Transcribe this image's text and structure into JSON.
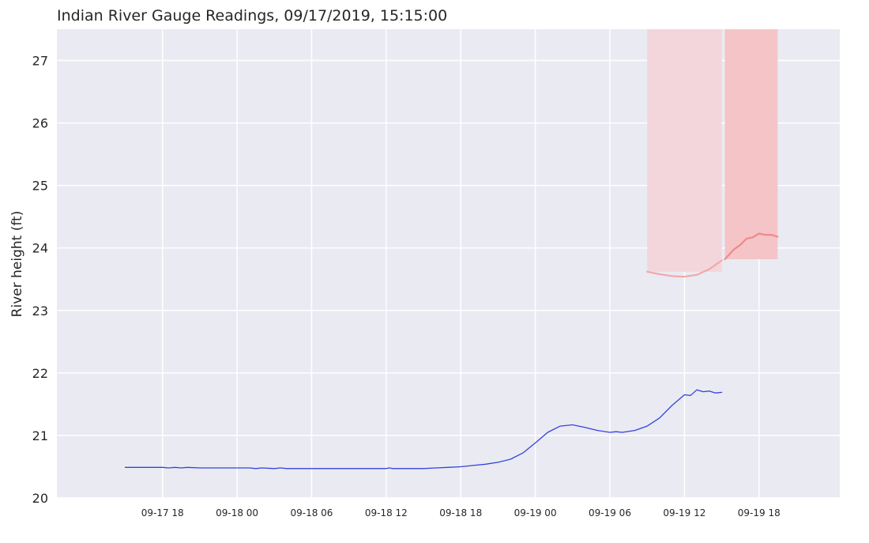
{
  "chart_data": {
    "type": "line",
    "title": "Indian River Gauge Readings, 09/17/2019, 15:15:00",
    "xlabel": "",
    "ylabel": "River height (ft)",
    "ylim": [
      20,
      27.5
    ],
    "yticks": [
      20,
      21,
      22,
      23,
      24,
      25,
      26,
      27
    ],
    "xlim": [
      "2019-09-17 09:30",
      "2019-09-20 00:30"
    ],
    "xticks": [
      {
        "t": "2019-09-17 18:00",
        "label": "09-17 18"
      },
      {
        "t": "2019-09-18 00:00",
        "label": "09-18 00"
      },
      {
        "t": "2019-09-18 06:00",
        "label": "09-18 06"
      },
      {
        "t": "2019-09-18 12:00",
        "label": "09-18 12"
      },
      {
        "t": "2019-09-18 18:00",
        "label": "09-18 18"
      },
      {
        "t": "2019-09-19 00:00",
        "label": "09-19 00"
      },
      {
        "t": "2019-09-19 06:00",
        "label": "09-19 06"
      },
      {
        "t": "2019-09-19 12:00",
        "label": "09-19 12"
      },
      {
        "t": "2019-09-19 18:00",
        "label": "09-19 18"
      }
    ],
    "grid": true,
    "colors": {
      "observed": "#3344dd",
      "forecast_near": "#f4a7a7",
      "forecast_far": "#ef8a8a",
      "band_near": "#f3d5dc",
      "band_far": "#f5c4c7",
      "plot_bg": "#eaeaf2",
      "grid": "#ffffff"
    },
    "bands": [
      {
        "x0": "2019-09-19 09:00",
        "x1": "2019-09-19 15:00",
        "y0": 23.62,
        "color": "#f3d5dc"
      },
      {
        "x0": "2019-09-19 15:15",
        "x1": "2019-09-19 19:30",
        "y0": 23.82,
        "color": "#f5c4c7"
      }
    ],
    "series": [
      {
        "key": "observed",
        "color": "#3344dd",
        "width": 1.3,
        "points": [
          [
            "2019-09-17 15:00",
            20.49
          ],
          [
            "2019-09-17 18:00",
            20.49
          ],
          [
            "2019-09-17 18:30",
            20.48
          ],
          [
            "2019-09-17 19:00",
            20.49
          ],
          [
            "2019-09-17 19:30",
            20.48
          ],
          [
            "2019-09-17 20:00",
            20.49
          ],
          [
            "2019-09-17 21:00",
            20.48
          ],
          [
            "2019-09-18 01:00",
            20.48
          ],
          [
            "2019-09-18 01:30",
            20.47
          ],
          [
            "2019-09-18 02:00",
            20.48
          ],
          [
            "2019-09-18 03:00",
            20.47
          ],
          [
            "2019-09-18 03:30",
            20.48
          ],
          [
            "2019-09-18 04:00",
            20.47
          ],
          [
            "2019-09-18 12:00",
            20.47
          ],
          [
            "2019-09-18 12:15",
            20.48
          ],
          [
            "2019-09-18 12:30",
            20.47
          ],
          [
            "2019-09-18 15:00",
            20.47
          ],
          [
            "2019-09-18 16:00",
            20.48
          ],
          [
            "2019-09-18 17:00",
            20.49
          ],
          [
            "2019-09-18 18:00",
            20.5
          ],
          [
            "2019-09-18 19:00",
            20.52
          ],
          [
            "2019-09-18 20:00",
            20.54
          ],
          [
            "2019-09-18 21:00",
            20.57
          ],
          [
            "2019-09-18 22:00",
            20.62
          ],
          [
            "2019-09-18 23:00",
            20.72
          ],
          [
            "2019-09-19 00:00",
            20.88
          ],
          [
            "2019-09-19 01:00",
            21.05
          ],
          [
            "2019-09-19 02:00",
            21.15
          ],
          [
            "2019-09-19 03:00",
            21.17
          ],
          [
            "2019-09-19 04:00",
            21.13
          ],
          [
            "2019-09-19 05:00",
            21.08
          ],
          [
            "2019-09-19 06:00",
            21.05
          ],
          [
            "2019-09-19 06:30",
            21.06
          ],
          [
            "2019-09-19 07:00",
            21.05
          ],
          [
            "2019-09-19 08:00",
            21.08
          ],
          [
            "2019-09-19 09:00",
            21.15
          ],
          [
            "2019-09-19 10:00",
            21.28
          ],
          [
            "2019-09-19 11:00",
            21.48
          ],
          [
            "2019-09-19 12:00",
            21.65
          ],
          [
            "2019-09-19 12:30",
            21.64
          ],
          [
            "2019-09-19 13:00",
            21.73
          ],
          [
            "2019-09-19 13:30",
            21.7
          ],
          [
            "2019-09-19 14:00",
            21.71
          ],
          [
            "2019-09-19 14:30",
            21.68
          ],
          [
            "2019-09-19 15:00",
            21.69
          ]
        ]
      },
      {
        "key": "forecast_near",
        "color": "#f4a7a7",
        "width": 2.2,
        "points": [
          [
            "2019-09-19 09:00",
            23.62
          ],
          [
            "2019-09-19 10:00",
            23.58
          ],
          [
            "2019-09-19 11:00",
            23.55
          ],
          [
            "2019-09-19 12:00",
            23.54
          ],
          [
            "2019-09-19 13:00",
            23.57
          ],
          [
            "2019-09-19 14:00",
            23.66
          ],
          [
            "2019-09-19 15:00",
            23.8
          ]
        ]
      },
      {
        "key": "forecast_far",
        "color": "#ef8a8a",
        "width": 2.2,
        "points": [
          [
            "2019-09-19 15:15",
            23.82
          ],
          [
            "2019-09-19 16:00",
            23.98
          ],
          [
            "2019-09-19 16:30",
            24.05
          ],
          [
            "2019-09-19 17:00",
            24.15
          ],
          [
            "2019-09-19 17:30",
            24.17
          ],
          [
            "2019-09-19 18:00",
            24.23
          ],
          [
            "2019-09-19 18:30",
            24.21
          ],
          [
            "2019-09-19 19:00",
            24.21
          ],
          [
            "2019-09-19 19:30",
            24.18
          ]
        ]
      }
    ]
  }
}
